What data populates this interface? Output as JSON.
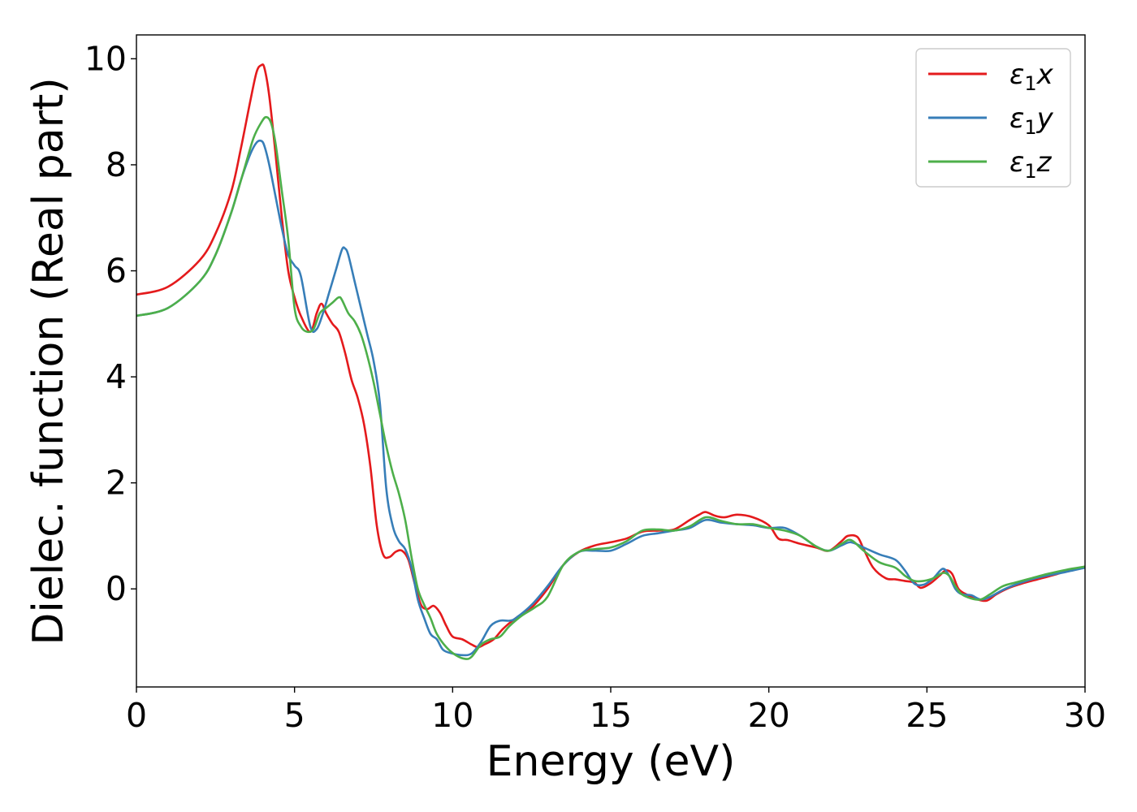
{
  "chart_data": {
    "type": "line",
    "xlabel": "Energy (eV)",
    "ylabel": "Dielec. function (Real part)",
    "xlim": [
      0,
      30
    ],
    "ylim": [
      -1.85,
      10.45
    ],
    "xticks": [
      "0",
      "5",
      "10",
      "15",
      "20",
      "25",
      "30"
    ],
    "yticks": [
      "0",
      "2",
      "4",
      "6",
      "8",
      "10"
    ],
    "grid": false,
    "legend_position": "top-right",
    "series": [
      {
        "name": "ε1x",
        "legend_main": "ε",
        "legend_sub": "1",
        "legend_suffix": "x",
        "color": "#e41a1c",
        "x": [
          0,
          1,
          2,
          2.5,
          3,
          3.3,
          3.6,
          3.8,
          3.95,
          4.05,
          4.2,
          4.4,
          4.6,
          4.8,
          5.0,
          5.2,
          5.5,
          5.7,
          5.85,
          6.0,
          6.2,
          6.4,
          6.6,
          6.8,
          7.0,
          7.2,
          7.4,
          7.6,
          7.8,
          8.0,
          8.2,
          8.4,
          8.6,
          8.8,
          9.0,
          9.2,
          9.4,
          9.6,
          9.8,
          10.0,
          10.3,
          10.6,
          10.8,
          11.0,
          11.3,
          11.6,
          12.0,
          12.5,
          13.0,
          13.5,
          14.0,
          14.5,
          15.0,
          15.5,
          16.0,
          16.5,
          17.0,
          17.5,
          17.8,
          18.0,
          18.3,
          18.6,
          19.0,
          19.5,
          20.0,
          20.3,
          20.6,
          21.0,
          21.5,
          21.9,
          22.3,
          22.5,
          22.8,
          23.0,
          23.3,
          23.7,
          24.0,
          24.3,
          24.6,
          24.8,
          25.1,
          25.4,
          25.6,
          25.8,
          26.0,
          26.3,
          26.6,
          26.9,
          27.2,
          27.6,
          28.0,
          28.5,
          29.0,
          29.5,
          30.0
        ],
        "values": [
          5.55,
          5.7,
          6.2,
          6.7,
          7.5,
          8.3,
          9.2,
          9.75,
          9.88,
          9.82,
          9.3,
          8.2,
          7.0,
          6.0,
          5.5,
          5.15,
          4.85,
          5.2,
          5.38,
          5.2,
          5.0,
          4.85,
          4.45,
          3.95,
          3.6,
          3.1,
          2.3,
          1.2,
          0.65,
          0.6,
          0.7,
          0.72,
          0.55,
          0.1,
          -0.3,
          -0.38,
          -0.32,
          -0.45,
          -0.7,
          -0.9,
          -0.95,
          -1.05,
          -1.1,
          -1.05,
          -0.95,
          -0.75,
          -0.55,
          -0.35,
          0.0,
          0.45,
          0.7,
          0.82,
          0.88,
          0.95,
          1.08,
          1.1,
          1.12,
          1.3,
          1.4,
          1.45,
          1.38,
          1.35,
          1.4,
          1.35,
          1.2,
          0.95,
          0.92,
          0.85,
          0.78,
          0.72,
          0.9,
          1.0,
          0.98,
          0.75,
          0.4,
          0.2,
          0.18,
          0.15,
          0.12,
          0.02,
          0.1,
          0.25,
          0.35,
          0.28,
          0.0,
          -0.12,
          -0.2,
          -0.22,
          -0.1,
          0.02,
          0.1,
          0.18,
          0.26,
          0.35,
          0.42
        ]
      },
      {
        "name": "ε1y",
        "legend_main": "ε",
        "legend_sub": "1",
        "legend_suffix": "y",
        "color": "#377eb8",
        "x": [
          0,
          1,
          2,
          2.5,
          3,
          3.3,
          3.6,
          3.8,
          3.95,
          4.05,
          4.2,
          4.4,
          4.6,
          4.8,
          5.0,
          5.2,
          5.5,
          5.7,
          5.9,
          6.1,
          6.3,
          6.5,
          6.6,
          6.7,
          6.9,
          7.1,
          7.3,
          7.5,
          7.7,
          7.9,
          8.1,
          8.3,
          8.5,
          8.7,
          8.9,
          9.1,
          9.3,
          9.5,
          9.7,
          10.0,
          10.3,
          10.6,
          10.9,
          11.2,
          11.5,
          11.8,
          12.0,
          12.5,
          13.0,
          13.5,
          14.0,
          14.5,
          15.0,
          15.5,
          16.0,
          16.5,
          17.0,
          17.5,
          18.0,
          18.5,
          19.0,
          19.5,
          20.0,
          20.5,
          21.0,
          21.5,
          21.9,
          22.3,
          22.6,
          23.0,
          23.5,
          24.0,
          24.3,
          24.6,
          24.9,
          25.2,
          25.5,
          25.7,
          25.9,
          26.1,
          26.4,
          26.7,
          27.0,
          27.4,
          27.8,
          28.3,
          28.8,
          29.4,
          30.0
        ],
        "values": [
          5.15,
          5.3,
          5.8,
          6.3,
          7.1,
          7.7,
          8.2,
          8.42,
          8.45,
          8.35,
          8.0,
          7.4,
          6.8,
          6.3,
          6.1,
          5.9,
          4.95,
          4.9,
          5.2,
          5.6,
          6.0,
          6.4,
          6.42,
          6.3,
          5.8,
          5.3,
          4.8,
          4.3,
          3.5,
          1.9,
          1.2,
          0.9,
          0.75,
          0.4,
          -0.2,
          -0.55,
          -0.85,
          -0.95,
          -1.15,
          -1.22,
          -1.25,
          -1.22,
          -1.0,
          -0.7,
          -0.6,
          -0.6,
          -0.55,
          -0.3,
          0.05,
          0.45,
          0.7,
          0.72,
          0.72,
          0.85,
          1.0,
          1.05,
          1.1,
          1.15,
          1.3,
          1.25,
          1.22,
          1.2,
          1.15,
          1.15,
          1.0,
          0.8,
          0.72,
          0.82,
          0.88,
          0.78,
          0.65,
          0.55,
          0.35,
          0.1,
          0.08,
          0.2,
          0.38,
          0.25,
          0.0,
          -0.1,
          -0.12,
          -0.2,
          -0.15,
          -0.02,
          0.08,
          0.18,
          0.25,
          0.32,
          0.4
        ]
      },
      {
        "name": "ε1z",
        "legend_main": "ε",
        "legend_sub": "1",
        "legend_suffix": "z",
        "color": "#4daf4a",
        "x": [
          0,
          1,
          2,
          2.5,
          3,
          3.4,
          3.7,
          3.95,
          4.1,
          4.25,
          4.4,
          4.6,
          4.8,
          5.0,
          5.2,
          5.4,
          5.6,
          5.8,
          6.0,
          6.2,
          6.4,
          6.5,
          6.7,
          6.9,
          7.1,
          7.3,
          7.5,
          7.7,
          7.9,
          8.1,
          8.3,
          8.5,
          8.7,
          8.9,
          9.1,
          9.3,
          9.5,
          9.8,
          10.1,
          10.4,
          10.6,
          10.9,
          11.2,
          11.5,
          11.8,
          12.2,
          12.6,
          13.0,
          13.5,
          14.0,
          14.5,
          15.0,
          15.5,
          16.0,
          16.5,
          17.0,
          17.5,
          18.0,
          18.5,
          19.0,
          19.5,
          20.0,
          20.5,
          21.0,
          21.5,
          21.9,
          22.3,
          22.6,
          23.0,
          23.5,
          24.0,
          24.3,
          24.6,
          24.9,
          25.2,
          25.5,
          25.7,
          25.9,
          26.1,
          26.4,
          26.7,
          27.0,
          27.4,
          27.8,
          28.3,
          28.8,
          29.4,
          30.0
        ],
        "values": [
          5.15,
          5.3,
          5.8,
          6.3,
          7.1,
          7.9,
          8.5,
          8.8,
          8.9,
          8.8,
          8.4,
          7.5,
          6.6,
          5.3,
          4.95,
          4.85,
          4.9,
          5.2,
          5.3,
          5.4,
          5.5,
          5.45,
          5.2,
          5.05,
          4.8,
          4.4,
          3.9,
          3.3,
          2.7,
          2.2,
          1.8,
          1.3,
          0.6,
          0.0,
          -0.3,
          -0.55,
          -0.85,
          -1.1,
          -1.25,
          -1.32,
          -1.28,
          -1.05,
          -0.95,
          -0.9,
          -0.7,
          -0.5,
          -0.35,
          -0.15,
          0.45,
          0.7,
          0.75,
          0.78,
          0.9,
          1.1,
          1.12,
          1.1,
          1.18,
          1.35,
          1.28,
          1.22,
          1.22,
          1.15,
          1.1,
          1.0,
          0.8,
          0.72,
          0.85,
          0.92,
          0.72,
          0.5,
          0.4,
          0.25,
          0.15,
          0.15,
          0.2,
          0.3,
          0.25,
          0.05,
          -0.1,
          -0.18,
          -0.2,
          -0.1,
          0.05,
          0.12,
          0.2,
          0.28,
          0.36,
          0.42
        ]
      }
    ]
  }
}
